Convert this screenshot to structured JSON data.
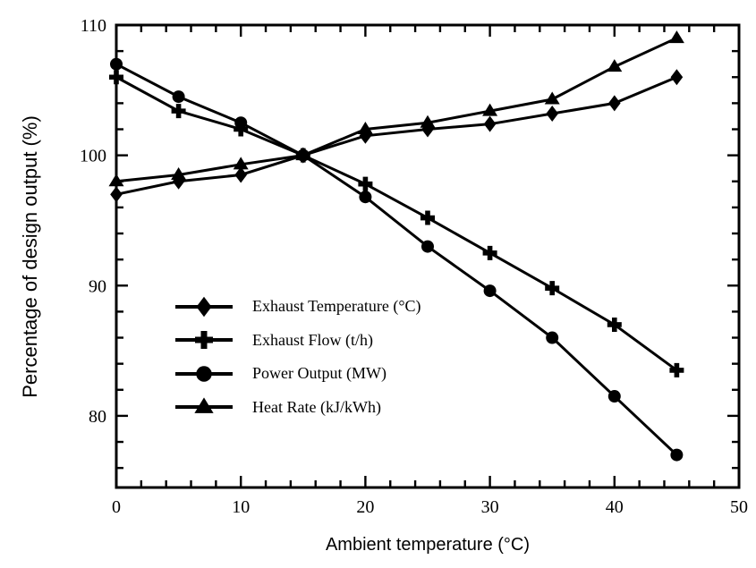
{
  "figure": {
    "background_color": "#ffffff",
    "line_color": "#000000",
    "text_color": "#000000"
  },
  "chart_data": {
    "type": "line",
    "title": "",
    "xlabel": "Ambient temperature (°C)",
    "ylabel": "Percentage of design output (%)",
    "xlim": [
      0,
      50
    ],
    "ylim": [
      74.5,
      110
    ],
    "x_major_ticks": [
      0,
      10,
      20,
      30,
      40,
      50
    ],
    "x_minor_step": 2,
    "y_major_ticks": [
      80,
      90,
      100,
      110
    ],
    "y_minor_step": 2,
    "grid": false,
    "legend_position": "inside-left-middle",
    "x": [
      0,
      5,
      10,
      15,
      20,
      25,
      30,
      35,
      40,
      45
    ],
    "series": [
      {
        "name": "Exhaust Temperature (°C)",
        "marker": "diamond",
        "values": [
          97.0,
          98.0,
          98.5,
          100.0,
          101.5,
          102.0,
          102.4,
          103.2,
          104.0,
          106.0
        ]
      },
      {
        "name": "Exhaust Flow (t/h)",
        "marker": "plus",
        "values": [
          106.0,
          103.4,
          102.0,
          100.0,
          97.8,
          95.2,
          92.5,
          89.8,
          87.0,
          83.5
        ]
      },
      {
        "name": "Power Output (MW)",
        "marker": "circle",
        "values": [
          107.0,
          104.5,
          102.5,
          100.0,
          96.8,
          93.0,
          89.6,
          86.0,
          81.5,
          77.0
        ]
      },
      {
        "name": "Heat Rate (kJ/kWh)",
        "marker": "triangle",
        "values": [
          98.0,
          98.5,
          99.3,
          100.0,
          102.0,
          102.5,
          103.4,
          104.3,
          106.8,
          109.0
        ]
      }
    ]
  }
}
